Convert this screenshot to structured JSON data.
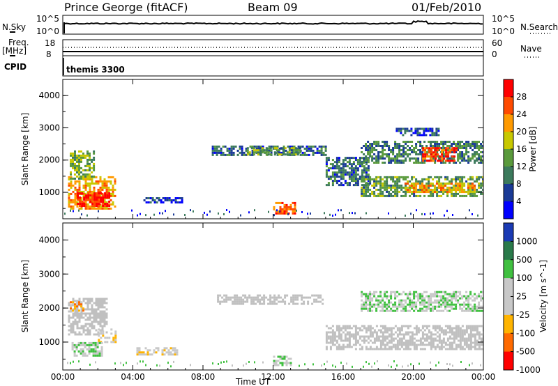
{
  "header": {
    "station": "Prince George (fitACF)",
    "beam": "Beam 09",
    "date": "01/Feb/2010"
  },
  "top_panels": {
    "nsky_label": "N.Sky",
    "nsky_ticks": [
      "10^5",
      "10^0"
    ],
    "nsearch_label": "N.Search",
    "nsearch_ticks": [
      "10^5",
      "10^0"
    ],
    "freq_label": "Freq.",
    "freq_unit": "[MHz]",
    "freq_ticks": [
      "18",
      "8"
    ],
    "nave_label": "Nave",
    "nave_ticks": [
      "60",
      "0"
    ],
    "cpid_label": "CPID",
    "cpid_value": "themis 3300"
  },
  "colors": {
    "power_scale": [
      "#0000ff",
      "#1a3a96",
      "#3c7a5c",
      "#5a9a3c",
      "#c8c800",
      "#ff9a00",
      "#ff4a00",
      "#ff0000"
    ],
    "velocity_scale": [
      "#ff0000",
      "#ff6a00",
      "#ffb400",
      "#c8c8c8",
      "#c8c8c8",
      "#40c040",
      "#2a7a4a",
      "#1a3ab4"
    ],
    "ground_scatter": "#c0c0c0"
  },
  "chart_data": [
    {
      "type": "heatmap",
      "title": "",
      "xlabel": "Time UT",
      "ylabel": "Slant Range [km]",
      "x_ticks": [
        "00:00",
        "04:00",
        "08:00",
        "12:00",
        "16:00",
        "20:00",
        "00:00"
      ],
      "y_ticks": [
        "1000",
        "2000",
        "3000",
        "4000"
      ],
      "xlim": [
        0,
        24
      ],
      "ylim": [
        180,
        4500
      ],
      "colorbar": {
        "label": "Power [dB]",
        "ticks": [
          "4",
          "8",
          "12",
          "16",
          "20",
          "24",
          "28"
        ],
        "range": [
          0,
          30
        ]
      },
      "regions": [
        {
          "t0": 0.3,
          "t1": 3.0,
          "r0": 500,
          "r1": 1500,
          "level": 20
        },
        {
          "t0": 0.8,
          "t1": 2.6,
          "r0": 600,
          "r1": 1000,
          "level": 28
        },
        {
          "t0": 0.4,
          "t1": 1.8,
          "r0": 1400,
          "r1": 2300,
          "level": 14
        },
        {
          "t0": 4.6,
          "t1": 6.8,
          "r0": 700,
          "r1": 850,
          "level": 5
        },
        {
          "t0": 8.5,
          "t1": 15.0,
          "r0": 2150,
          "r1": 2450,
          "level": 8
        },
        {
          "t0": 10.5,
          "t1": 13.5,
          "r0": 2200,
          "r1": 2400,
          "level": 12
        },
        {
          "t0": 12.0,
          "t1": 13.2,
          "r0": 350,
          "r1": 700,
          "level": 24
        },
        {
          "t0": 15.0,
          "t1": 17.5,
          "r0": 1200,
          "r1": 2100,
          "level": 8
        },
        {
          "t0": 17.0,
          "t1": 24.0,
          "r0": 900,
          "r1": 1500,
          "level": 12
        },
        {
          "t0": 19.5,
          "t1": 23.5,
          "r0": 1000,
          "r1": 1300,
          "level": 20
        },
        {
          "t0": 17.0,
          "t1": 24.0,
          "r0": 1900,
          "r1": 2600,
          "level": 10
        },
        {
          "t0": 20.5,
          "t1": 22.5,
          "r0": 2000,
          "r1": 2400,
          "level": 26
        },
        {
          "t0": 19.0,
          "t1": 21.5,
          "r0": 2800,
          "r1": 3000,
          "level": 6
        }
      ]
    },
    {
      "type": "heatmap",
      "title": "",
      "xlabel": "Time UT",
      "ylabel": "Slant Range [km]",
      "x_ticks": [
        "00:00",
        "04:00",
        "08:00",
        "12:00",
        "16:00",
        "20:00",
        "00:00"
      ],
      "y_ticks": [
        "1000",
        "2000",
        "3000",
        "4000"
      ],
      "xlim": [
        0,
        24
      ],
      "ylim": [
        180,
        4500
      ],
      "colorbar": {
        "label": "Velocity [m s^-1]",
        "ticks": [
          "1000",
          "500",
          "100",
          "25",
          "-25",
          "-100",
          "-500",
          "-1000"
        ],
        "range": [
          -1000,
          1000
        ]
      },
      "regions": [
        {
          "t0": 0.3,
          "t1": 2.5,
          "r0": 1200,
          "r1": 2300,
          "value": 0,
          "gs": true
        },
        {
          "t0": 0.4,
          "t1": 1.2,
          "r0": 1900,
          "r1": 2200,
          "value": -500
        },
        {
          "t0": 2.0,
          "t1": 3.0,
          "r0": 1000,
          "r1": 1400,
          "value": -200
        },
        {
          "t0": 0.5,
          "t1": 2.2,
          "r0": 600,
          "r1": 1000,
          "value": 200
        },
        {
          "t0": 4.2,
          "t1": 6.5,
          "r0": 650,
          "r1": 850,
          "value": -100
        },
        {
          "t0": 8.8,
          "t1": 15.0,
          "r0": 2100,
          "r1": 2400,
          "value": 0,
          "gs": true
        },
        {
          "t0": 15.0,
          "t1": 24.0,
          "r0": 800,
          "r1": 1500,
          "value": 0,
          "gs": true
        },
        {
          "t0": 17.0,
          "t1": 24.0,
          "r0": 1900,
          "r1": 2500,
          "value": 200
        },
        {
          "t0": 12.0,
          "t1": 13.0,
          "r0": 350,
          "r1": 600,
          "value": 200
        }
      ]
    }
  ]
}
